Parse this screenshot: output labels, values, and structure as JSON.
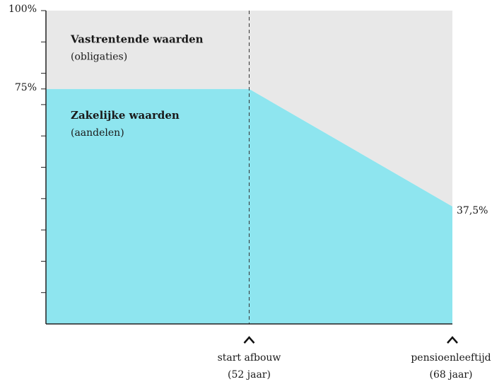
{
  "chart_data": {
    "type": "stacked_area",
    "x": [
      36,
      52,
      68
    ],
    "xlim": [
      36,
      68
    ],
    "xticks": [
      {
        "value": 52,
        "label": [
          "start afbouw",
          "(52 jaar)"
        ]
      },
      {
        "value": 68,
        "label": [
          "pensioenleeftijd",
          "(68 jaar)"
        ]
      }
    ],
    "vline": 52,
    "ylim": [
      0,
      100
    ],
    "yticks": [
      {
        "value": 100,
        "label": "100%"
      },
      {
        "value": 75,
        "label": "75%"
      }
    ],
    "yminor_ticks": [
      90,
      80,
      70,
      60,
      50,
      40,
      30,
      20,
      10
    ],
    "series": [
      {
        "name": "Zakelijke waarden",
        "subname": "(aandelen)",
        "color": "#8ee5ef",
        "values": [
          75,
          75,
          37.5
        ],
        "value_labels": [
          null,
          null,
          "37,5%"
        ]
      },
      {
        "name": "Vastrentende waarden",
        "subname": "(obligaties)",
        "color": "#e8e8e8",
        "values": [
          25,
          25,
          62.5
        ]
      }
    ]
  }
}
